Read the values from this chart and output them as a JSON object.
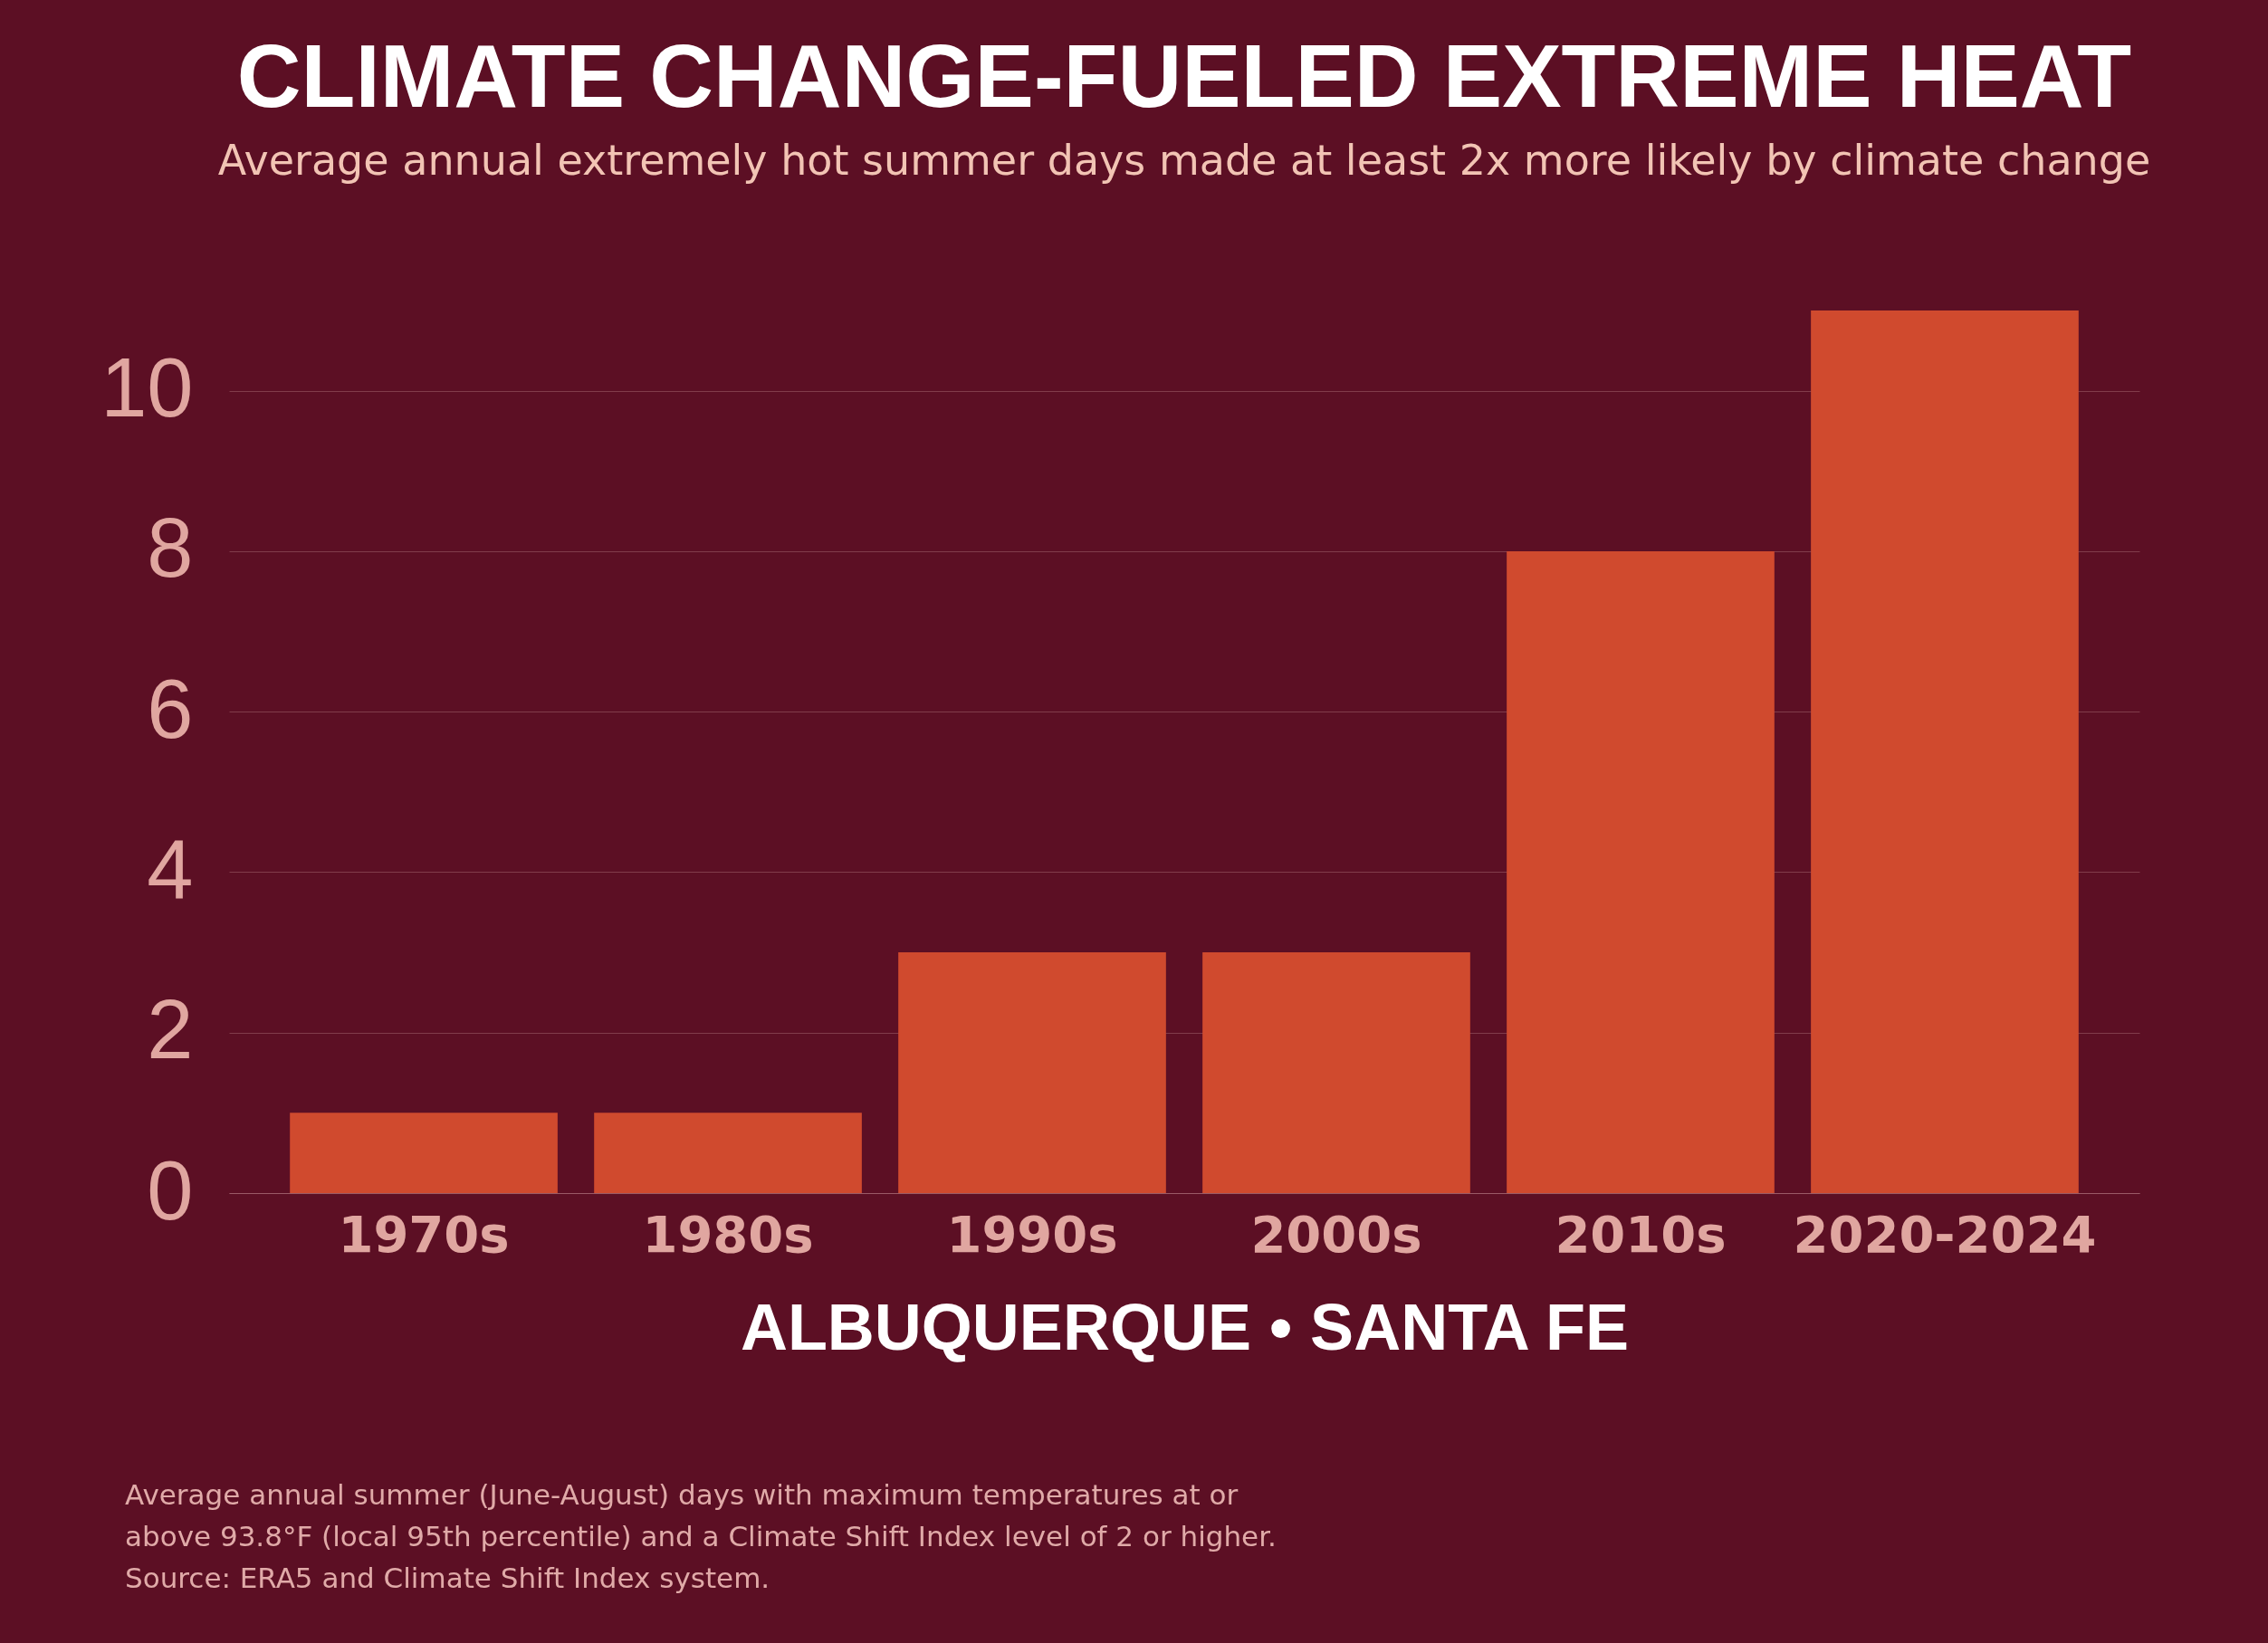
{
  "chart_data": {
    "type": "bar",
    "title": "CLIMATE CHANGE-FUELED EXTREME HEAT",
    "subtitle": "Average annual extremely hot summer days made at least 2x more likely by climate change",
    "xlabel": "ALBUQUERQUE • SANTA FE",
    "categories": [
      "1970s",
      "1980s",
      "1990s",
      "2000s",
      "2010s",
      "2020-2024"
    ],
    "values": [
      1,
      1,
      3,
      3,
      8,
      11
    ],
    "color": "#d04a2e",
    "ylim": [
      0,
      11
    ],
    "yticks": [
      0,
      2,
      4,
      6,
      8,
      10
    ],
    "grid": "y",
    "annotations": [
      "Average annual summer (June-August) days with maximum temperatures at or",
      "above 93.8°F (local 95th percentile) and a Climate Shift Index level of 2 or higher.",
      "Source: ERA5 and Climate Shift Index system."
    ]
  }
}
